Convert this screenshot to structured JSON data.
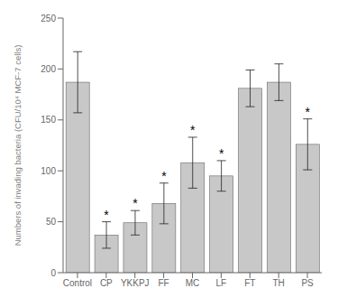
{
  "chart_data": {
    "type": "bar",
    "categories": [
      "Control",
      "CP",
      "YKKPJ",
      "FF",
      "MC",
      "LF",
      "FT",
      "TH",
      "PS"
    ],
    "values": [
      187,
      37,
      49,
      68,
      108,
      95,
      181,
      187,
      126
    ],
    "errors": [
      30,
      13,
      12,
      20,
      25,
      15,
      18,
      18,
      25
    ],
    "color": "#c8c8c8",
    "ylabel": "Numbers of invading bacteria (CFU/10⁴ MCF-7 cells)",
    "ylim": [
      0,
      250
    ],
    "yticks": [
      0,
      50,
      100,
      150,
      200,
      250
    ],
    "annotations": [
      {
        "x": "CP",
        "text": "*"
      },
      {
        "x": "YKKPJ",
        "text": "*"
      },
      {
        "x": "FF",
        "text": "*"
      },
      {
        "x": "MC",
        "text": "*"
      },
      {
        "x": "LF",
        "text": "*"
      },
      {
        "x": "PS",
        "text": "*"
      }
    ],
    "grid": false
  }
}
